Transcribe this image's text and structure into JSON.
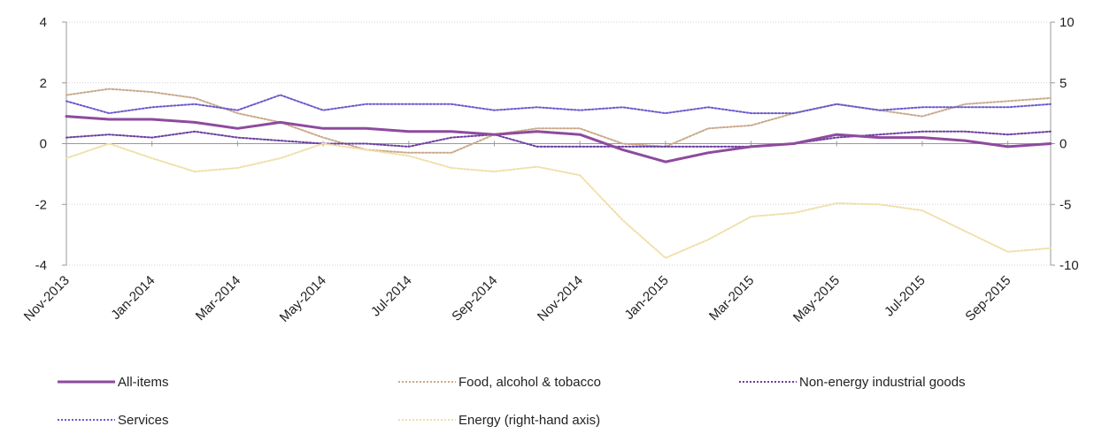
{
  "chart_data": {
    "type": "line",
    "title": "",
    "xlabel": "",
    "ylabel": "",
    "x": [
      "Nov-2013",
      "Dec-2013",
      "Jan-2014",
      "Feb-2014",
      "Mar-2014",
      "Apr-2014",
      "May-2014",
      "Jun-2014",
      "Jul-2014",
      "Aug-2014",
      "Sep-2014",
      "Oct-2014",
      "Nov-2014",
      "Dec-2014",
      "Jan-2015",
      "Feb-2015",
      "Mar-2015",
      "Apr-2015",
      "May-2015",
      "Jun-2015",
      "Jul-2015",
      "Aug-2015",
      "Sep-2015",
      "Oct-2015"
    ],
    "x_tick_labels": [
      "Nov-2013",
      "Jan-2014",
      "Mar-2014",
      "May-2014",
      "Jul-2014",
      "Sep-2014",
      "Nov-2014",
      "Jan-2015",
      "Mar-2015",
      "May-2015",
      "Jul-2015",
      "Sep-2015"
    ],
    "ylim": [
      -4,
      4
    ],
    "yticks": [
      -4,
      -2,
      0,
      2,
      4
    ],
    "y2lim": [
      -10,
      10
    ],
    "y2ticks": [
      -10,
      -5,
      0,
      5,
      10
    ],
    "grid": true,
    "legend_position": "bottom",
    "series": [
      {
        "name": "All-items",
        "axis": "left",
        "color": "#8e4a9e",
        "style": "solid",
        "values": [
          0.9,
          0.8,
          0.8,
          0.7,
          0.5,
          0.7,
          0.5,
          0.5,
          0.4,
          0.4,
          0.3,
          0.4,
          0.3,
          -0.2,
          -0.6,
          -0.3,
          -0.1,
          0.0,
          0.3,
          0.2,
          0.2,
          0.1,
          -0.1,
          0.0
        ]
      },
      {
        "name": "Food, alcohol & tobacco",
        "axis": "left",
        "color": "#c9a98a",
        "style": "dotted",
        "values": [
          1.6,
          1.8,
          1.7,
          1.5,
          1.0,
          0.7,
          0.2,
          -0.2,
          -0.3,
          -0.3,
          0.3,
          0.5,
          0.5,
          0.0,
          -0.1,
          0.5,
          0.6,
          1.0,
          1.3,
          1.1,
          0.9,
          1.3,
          1.4,
          1.5
        ]
      },
      {
        "name": "Non-energy industrial goods",
        "axis": "left",
        "color": "#6b3fa0",
        "style": "dotted",
        "values": [
          0.2,
          0.3,
          0.2,
          0.4,
          0.2,
          0.1,
          0.0,
          0.0,
          -0.1,
          0.2,
          0.3,
          -0.1,
          -0.1,
          -0.1,
          -0.1,
          -0.1,
          -0.1,
          0.0,
          0.2,
          0.3,
          0.4,
          0.4,
          0.3,
          0.4
        ]
      },
      {
        "name": "Services",
        "axis": "left",
        "color": "#6a5acd",
        "style": "dotted",
        "values": [
          1.4,
          1.0,
          1.2,
          1.3,
          1.1,
          1.6,
          1.1,
          1.3,
          1.3,
          1.3,
          1.1,
          1.2,
          1.1,
          1.2,
          1.0,
          1.2,
          1.0,
          1.0,
          1.3,
          1.1,
          1.2,
          1.2,
          1.2,
          1.3
        ]
      },
      {
        "name": "Energy (right-hand axis)",
        "axis": "right",
        "color": "#efdfa8",
        "style": "dotted",
        "values": [
          -1.2,
          0.0,
          -1.2,
          -2.3,
          -2.0,
          -1.2,
          0.0,
          -0.5,
          -1.0,
          -2.0,
          -2.3,
          -1.9,
          -2.6,
          -6.3,
          -9.4,
          -7.9,
          -6.0,
          -5.7,
          -4.9,
          -5.0,
          -5.5,
          -7.2,
          -8.9,
          -8.6
        ]
      }
    ]
  }
}
